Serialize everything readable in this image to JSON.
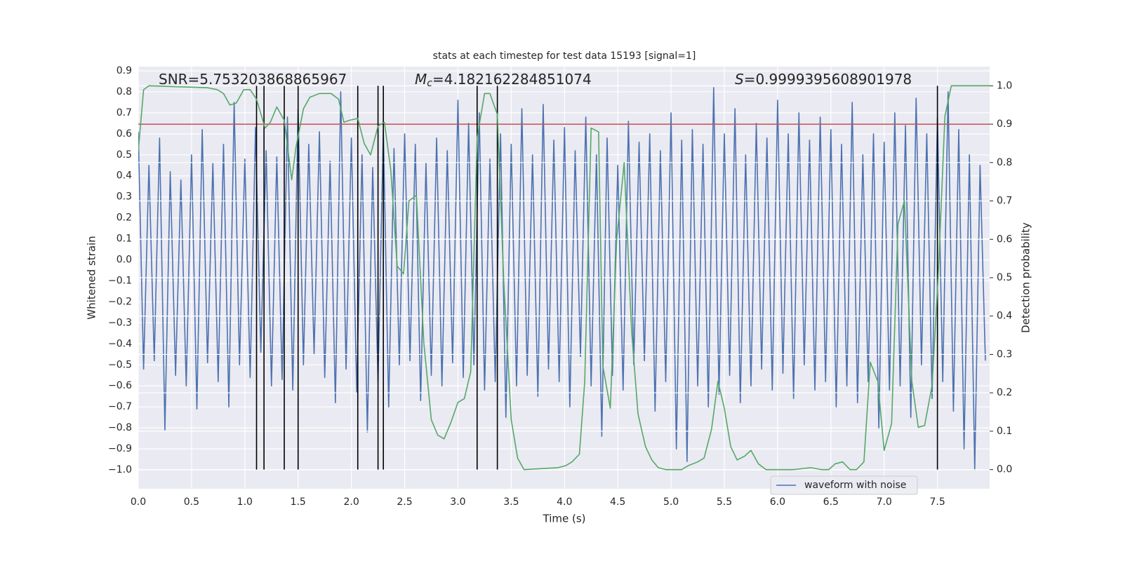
{
  "chart_data": {
    "type": "line",
    "title": "stats at each timestep for test data 15193 [signal=1]",
    "xlabel": "Time (s)",
    "ylabel": "Whitened strain",
    "y2label": "Detection probability",
    "xlim": [
      0,
      7.99
    ],
    "xticks": [
      {
        "value": 0,
        "label": "0.0"
      },
      0.5,
      {
        "value": 1,
        "label": "1.0"
      },
      1.5,
      {
        "value": 2,
        "label": "2.0"
      },
      2.5,
      {
        "value": 3,
        "label": "3.0"
      },
      3.5,
      {
        "value": 4,
        "label": "4.0"
      },
      4.5,
      {
        "value": 5,
        "label": "5.0"
      },
      5.5,
      {
        "value": 6,
        "label": "6.0"
      },
      6.5,
      {
        "value": 7,
        "label": "7.0"
      },
      7.5
    ],
    "ylim": [
      -1.09,
      0.92
    ],
    "yticks": [
      {
        "value": -1.0,
        "label": "−1.0"
      },
      {
        "value": -0.9,
        "label": "−0.9"
      },
      {
        "value": -0.8,
        "label": "−0.8"
      },
      {
        "value": -0.7,
        "label": "−0.7"
      },
      {
        "value": -0.6,
        "label": "−0.6"
      },
      {
        "value": -0.5,
        "label": "−0.5"
      },
      {
        "value": -0.4,
        "label": "−0.4"
      },
      {
        "value": -0.3,
        "label": "−0.3"
      },
      {
        "value": -0.2,
        "label": "−0.2"
      },
      {
        "value": -0.1,
        "label": "−0.1"
      },
      {
        "value": 0,
        "label": "0.0"
      },
      0.1,
      0.2,
      0.3,
      0.4,
      0.5,
      0.6,
      0.7,
      0.8,
      0.9
    ],
    "y2lim": [
      -0.05,
      1.05
    ],
    "y2ticks": [
      {
        "value": 0,
        "label": "0.0"
      },
      0.1,
      0.2,
      0.3,
      0.4,
      0.5,
      0.6,
      0.7,
      0.8,
      0.9,
      {
        "value": 1,
        "label": "1.0"
      }
    ],
    "grid": true,
    "series": [
      {
        "name": "waveform with noise",
        "color": "#4c72b0",
        "x": [
          0,
          0.05,
          0.1,
          0.15,
          0.2,
          0.25,
          0.3,
          0.35,
          0.4,
          0.45,
          0.5,
          0.55,
          0.6,
          0.65,
          0.7,
          0.75,
          0.8,
          0.85,
          0.9,
          0.95,
          1,
          1.05,
          1.1,
          1.15,
          1.2,
          1.25,
          1.3,
          1.35,
          1.4,
          1.45,
          1.5,
          1.55,
          1.6,
          1.65,
          1.7,
          1.75,
          1.8,
          1.85,
          1.9,
          1.95,
          2,
          2.05,
          2.1,
          2.15,
          2.2,
          2.25,
          2.3,
          2.35,
          2.4,
          2.45,
          2.5,
          2.55,
          2.6,
          2.65,
          2.7,
          2.75,
          2.8,
          2.85,
          2.9,
          2.95,
          3,
          3.05,
          3.1,
          3.15,
          3.2,
          3.25,
          3.3,
          3.35,
          3.4,
          3.45,
          3.5,
          3.55,
          3.6,
          3.65,
          3.7,
          3.75,
          3.8,
          3.85,
          3.9,
          3.95,
          4,
          4.05,
          4.1,
          4.15,
          4.2,
          4.25,
          4.3,
          4.35,
          4.4,
          4.45,
          4.5,
          4.55,
          4.6,
          4.65,
          4.7,
          4.75,
          4.8,
          4.85,
          4.9,
          4.95,
          5,
          5.05,
          5.1,
          5.15,
          5.2,
          5.25,
          5.3,
          5.35,
          5.4,
          5.45,
          5.5,
          5.55,
          5.6,
          5.65,
          5.7,
          5.75,
          5.8,
          5.85,
          5.9,
          5.95,
          6,
          6.05,
          6.1,
          6.15,
          6.2,
          6.25,
          6.3,
          6.35,
          6.4,
          6.45,
          6.5,
          6.55,
          6.6,
          6.65,
          6.7,
          6.75,
          6.8,
          6.85,
          6.9,
          6.95,
          7,
          7.05,
          7.1,
          7.15,
          7.2,
          7.25,
          7.3,
          7.35,
          7.4,
          7.45,
          7.5,
          7.55,
          7.6,
          7.65,
          7.7,
          7.75,
          7.8,
          7.85,
          7.9,
          7.95
        ],
        "values": [
          0.61,
          -0.52,
          0.45,
          -0.48,
          0.58,
          -0.81,
          0.42,
          -0.55,
          0.38,
          -0.6,
          0.5,
          -0.71,
          0.62,
          -0.49,
          0.46,
          -0.58,
          0.55,
          -0.7,
          0.75,
          -0.5,
          0.48,
          -0.56,
          0.63,
          -0.44,
          0.52,
          -0.6,
          0.49,
          -0.57,
          0.68,
          -0.62,
          0.72,
          -0.5,
          0.55,
          -0.45,
          0.61,
          -0.56,
          0.47,
          -0.68,
          0.8,
          -0.52,
          0.58,
          -0.63,
          0.5,
          -0.82,
          0.44,
          -0.58,
          0.62,
          -0.7,
          0.53,
          -0.5,
          0.6,
          -0.48,
          0.55,
          -0.67,
          0.46,
          -0.55,
          0.58,
          -0.6,
          0.52,
          -0.49,
          0.76,
          -0.56,
          0.65,
          -0.5,
          0.7,
          -0.62,
          0.48,
          -0.58,
          0.6,
          -0.75,
          0.55,
          -0.6,
          0.72,
          -0.55,
          0.5,
          -0.65,
          0.74,
          -0.52,
          0.57,
          -0.58,
          0.63,
          -0.7,
          0.52,
          -0.46,
          0.68,
          -0.6,
          0.5,
          -0.84,
          0.58,
          -0.55,
          0.45,
          -0.62,
          0.66,
          -0.5,
          0.56,
          -0.48,
          0.6,
          -0.72,
          0.52,
          -0.58,
          0.7,
          -0.9,
          0.57,
          -0.96,
          0.62,
          -0.6,
          0.55,
          -0.7,
          0.82,
          -0.64,
          0.6,
          -0.55,
          0.72,
          -0.68,
          0.5,
          -0.6,
          0.65,
          -0.52,
          0.58,
          -0.62,
          0.76,
          -0.54,
          0.6,
          -0.66,
          0.7,
          -0.5,
          0.57,
          -0.62,
          0.68,
          -0.58,
          0.62,
          -0.7,
          0.55,
          -0.6,
          0.75,
          -0.68,
          0.5,
          -0.58,
          0.6,
          -0.8,
          0.56,
          -0.62,
          0.7,
          -0.6,
          0.64,
          -0.75,
          0.77,
          -0.5,
          0.6,
          -0.66,
          0.68,
          -0.58,
          0.8,
          -0.72,
          0.62,
          -0.9,
          0.5,
          -1.0,
          0.45,
          -0.48
        ]
      },
      {
        "color": "#55a868",
        "axis": "y2",
        "x": [
          0,
          0.05,
          0.1,
          0.65,
          0.74,
          0.8,
          0.86,
          0.92,
          0.99,
          1.05,
          1.11,
          1.19,
          1.24,
          1.3,
          1.37,
          1.44,
          1.48,
          1.55,
          1.61,
          1.7,
          1.81,
          1.88,
          1.93,
          1.98,
          2.06,
          2.12,
          2.18,
          2.25,
          2.31,
          2.37,
          2.43,
          2.49,
          2.54,
          2.61,
          2.68,
          2.75,
          2.81,
          2.87,
          2.93,
          3,
          3.06,
          3.12,
          3.18,
          3.25,
          3.3,
          3.37,
          3.43,
          3.5,
          3.56,
          3.62,
          3.94,
          4.01,
          4.07,
          4.14,
          4.19,
          4.25,
          4.32,
          4.36,
          4.43,
          4.49,
          4.56,
          4.63,
          4.69,
          4.76,
          4.82,
          4.88,
          4.95,
          5.02,
          5.1,
          5.16,
          5.25,
          5.31,
          5.38,
          5.44,
          5.5,
          5.56,
          5.62,
          5.69,
          5.75,
          5.82,
          5.89,
          6.15,
          6.31,
          6.41,
          6.48,
          6.54,
          6.61,
          6.68,
          6.74,
          6.81,
          6.87,
          6.94,
          7,
          7.07,
          7.13,
          7.19,
          7.26,
          7.32,
          7.38,
          7.45,
          7.51,
          7.57,
          7.63,
          7.7,
          7.99
        ],
        "values": [
          0.83,
          0.99,
          1.0,
          0.995,
          0.99,
          0.98,
          0.95,
          0.955,
          0.99,
          0.99,
          0.965,
          0.89,
          0.905,
          0.945,
          0.91,
          0.755,
          0.84,
          0.94,
          0.97,
          0.98,
          0.98,
          0.965,
          0.905,
          0.91,
          0.915,
          0.85,
          0.82,
          0.895,
          0.905,
          0.78,
          0.53,
          0.51,
          0.7,
          0.715,
          0.33,
          0.13,
          0.09,
          0.08,
          0.12,
          0.175,
          0.185,
          0.255,
          0.865,
          0.98,
          0.98,
          0.925,
          0.49,
          0.13,
          0.03,
          0.0,
          0.005,
          0.01,
          0.02,
          0.04,
          0.23,
          0.89,
          0.88,
          0.27,
          0.16,
          0.6,
          0.8,
          0.36,
          0.145,
          0.06,
          0.025,
          0.005,
          0.0,
          0.0,
          0.0,
          0.01,
          0.02,
          0.03,
          0.105,
          0.23,
          0.16,
          0.06,
          0.025,
          0.035,
          0.05,
          0.015,
          0.0,
          0.0,
          0.005,
          0.0,
          0.0,
          0.015,
          0.02,
          0.0,
          0.0,
          0.02,
          0.28,
          0.23,
          0.05,
          0.12,
          0.64,
          0.7,
          0.23,
          0.11,
          0.115,
          0.22,
          0.52,
          0.92,
          1.0,
          1.0,
          1.0
        ]
      }
    ],
    "hlines": [
      {
        "value": 0.9,
        "axis": "y2",
        "color": "#c44e52"
      }
    ],
    "vlines": {
      "x": [
        1.11,
        1.18,
        1.37,
        1.5,
        2.06,
        2.25,
        2.3,
        3.18,
        3.37,
        7.5
      ],
      "y2range": [
        0,
        1
      ],
      "color": "#000000"
    },
    "annotations": [
      {
        "text": "SNR=5.753203868865967"
      },
      {
        "symbol": "M",
        "subscript": "c",
        "text": "=4.182162284851074"
      },
      {
        "symbol": "S",
        "text": "=0.9999395608901978"
      }
    ],
    "legend": {
      "loc": "lower right"
    }
  }
}
